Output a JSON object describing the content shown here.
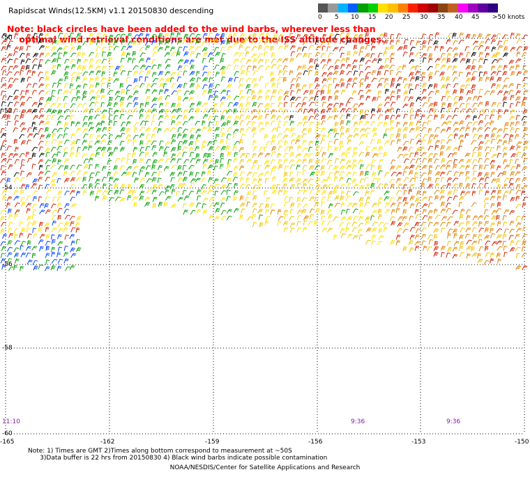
{
  "title": "Rapidscat Winds(12.5KM) v1.1 20150830 descending",
  "note": "Note: black circles have been added to the wind barbs, wherever less than\n    optimal wind retrieval conditions are met due to the ISS altitude changes.",
  "legend": {
    "labels": [
      "0",
      "5",
      "10",
      "15",
      "20",
      "25",
      "30",
      "35",
      "40",
      "45",
      ">50 knots"
    ],
    "colors": [
      "#555555",
      "#999999",
      "#00b4ff",
      "#0060ff",
      "#00a000",
      "#00d000",
      "#ffe000",
      "#ffc000",
      "#ff8000",
      "#ff2000",
      "#d00000",
      "#a00000",
      "#8b4513",
      "#c06020",
      "#ff00ff",
      "#a000c0",
      "#6000a0",
      "#300080"
    ]
  },
  "axes": {
    "lat_labels": [
      "-50",
      "-52",
      "-54",
      "-56",
      "-58",
      "-60"
    ],
    "lon_labels": [
      "-165",
      "-162",
      "-159",
      "-156",
      "-153",
      "-150"
    ]
  },
  "times": [
    "11:10",
    "9:36",
    "9:36"
  ],
  "footnote": "Note: 1) Times are GMT 2)Times along bottom correspond to measurement at ~50S\n      3)Data buffer is 22 hrs from 20150830 4) Black wind barbs indicate possible contamination",
  "credit": "NOAA/NESDIS/Center for Satellite Applications and Research",
  "wind_colors": {
    "light": "#ffe000",
    "moderate": "#f0c000",
    "strong": "#e08000",
    "very_strong": "#d02000",
    "green": "#00a000",
    "blue": "#0040ff",
    "contaminated": "#000000"
  }
}
